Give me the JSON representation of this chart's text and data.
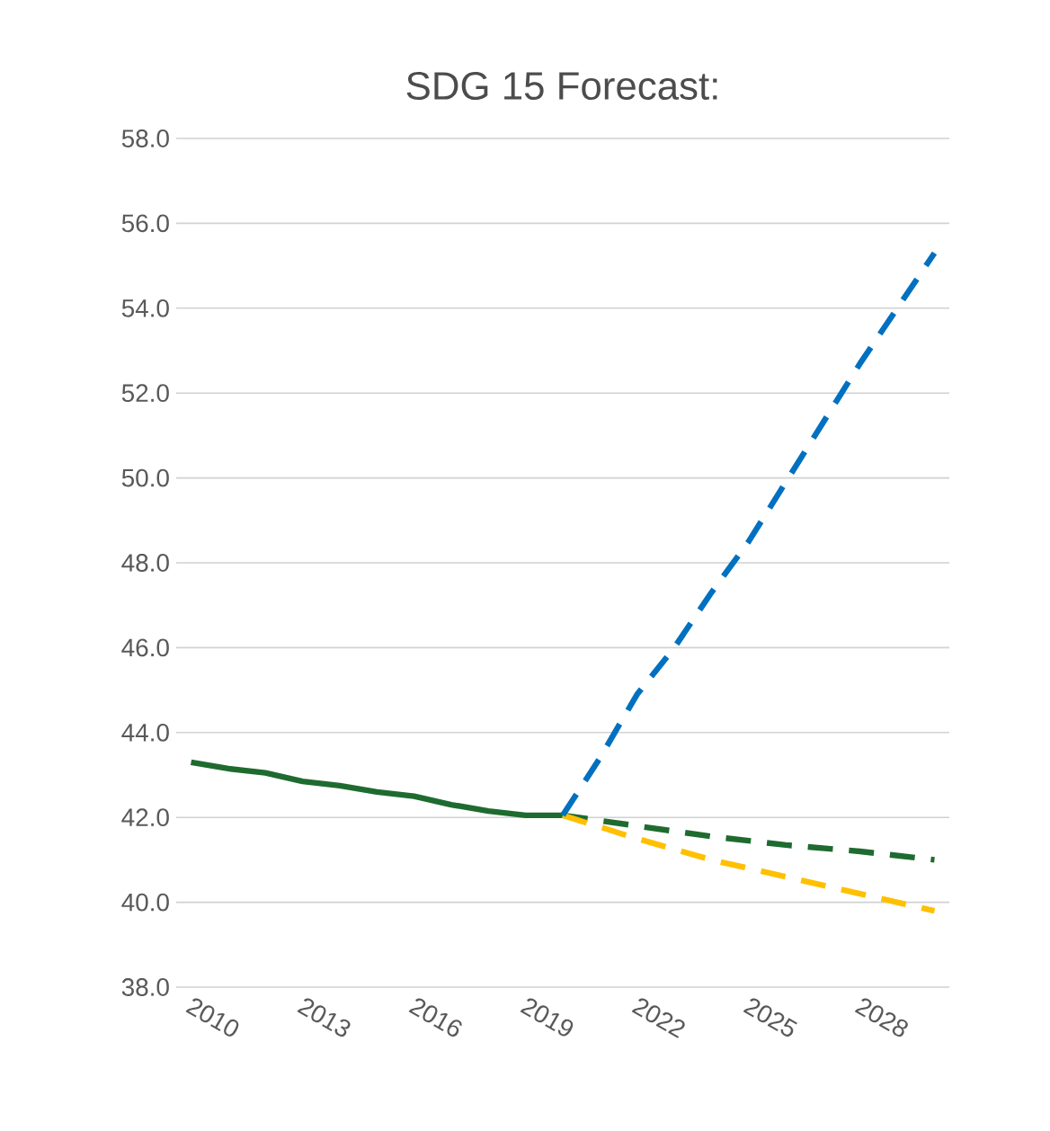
{
  "chart_data": {
    "type": "line",
    "title": "SDG 15 Forecast:",
    "ylim": [
      38,
      58
    ],
    "yticks": [
      {
        "value": 38,
        "label": "38.0"
      },
      {
        "value": 40,
        "label": "40.0"
      },
      {
        "value": 42,
        "label": "42.0"
      },
      {
        "value": 44,
        "label": "44.0"
      },
      {
        "value": 46,
        "label": "46.0"
      },
      {
        "value": 48,
        "label": "48.0"
      },
      {
        "value": 50,
        "label": "50.0"
      },
      {
        "value": 52,
        "label": "52.0"
      },
      {
        "value": 54,
        "label": "54.0"
      },
      {
        "value": 56,
        "label": "56.0"
      },
      {
        "value": 58,
        "label": "58.0"
      }
    ],
    "xlim": [
      2009.6,
      2030.4
    ],
    "xticks": [
      2010,
      2013,
      2016,
      2019,
      2022,
      2025,
      2028
    ],
    "grid": "y",
    "marker": "none",
    "series": [
      {
        "color": "#1e6b30",
        "line_style": "solid",
        "x": [
          2010,
          2011,
          2012,
          2013,
          2014,
          2015,
          2016,
          2017,
          2018,
          2019,
          2020
        ],
        "values": [
          43.3,
          43.15,
          43.05,
          42.85,
          42.75,
          42.6,
          42.5,
          42.3,
          42.15,
          42.05,
          42.05
        ]
      },
      {
        "color": "#1e6b30",
        "line_style": "dashed",
        "x": [
          2020,
          2022,
          2024,
          2026,
          2028,
          2030
        ],
        "values": [
          42.05,
          41.8,
          41.55,
          41.35,
          41.2,
          41.0
        ]
      },
      {
        "color": "#ffc000",
        "line_style": "dashed",
        "x": [
          2020,
          2022,
          2024,
          2026,
          2028,
          2030
        ],
        "values": [
          42.05,
          41.5,
          41.0,
          40.6,
          40.2,
          39.8
        ]
      },
      {
        "color": "#0070c0",
        "line_style": "dashed",
        "x": [
          2020,
          2021,
          2022,
          2023,
          2024,
          2025,
          2026,
          2027,
          2028,
          2029,
          2030
        ],
        "values": [
          42.05,
          43.4,
          44.9,
          46.0,
          47.3,
          48.5,
          49.9,
          51.3,
          52.7,
          54.0,
          55.3
        ]
      }
    ]
  }
}
